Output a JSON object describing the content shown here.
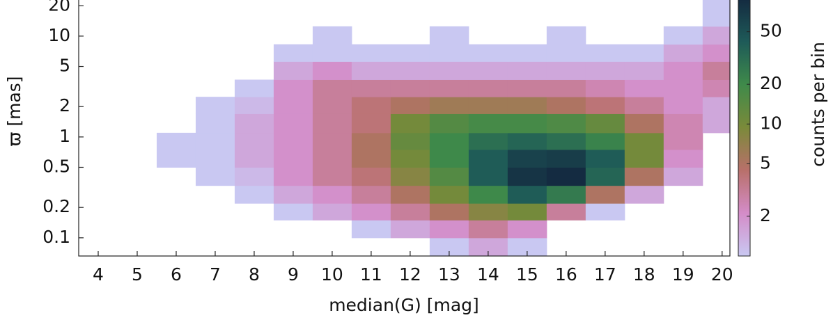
{
  "chart_data": {
    "type": "hist2d",
    "xlabel": "median(G)  [mag]",
    "ylabel": "ϖ  [mas]",
    "colorbar_label": "counts per bin",
    "xlim": [
      3.5,
      20.2
    ],
    "xticks": [
      4,
      5,
      6,
      7,
      8,
      9,
      10,
      11,
      12,
      13,
      14,
      15,
      16,
      17,
      18,
      19,
      20
    ],
    "ylim": [
      0.066,
      22.8
    ],
    "yscale": "log",
    "yticks": [
      0.1,
      0.2,
      0.5,
      1,
      2,
      5,
      10,
      20
    ],
    "clim": [
      1,
      87
    ],
    "cscale": "log",
    "cticks": [
      2,
      5,
      10,
      20,
      50
    ],
    "colormap": [
      "#c9c8f2",
      "#d48cc8",
      "#b8706a",
      "#7a8a3a",
      "#3f8a4a",
      "#1e5a58",
      "#142a40"
    ],
    "xbins": [
      3.5,
      4.5,
      5.5,
      6.5,
      7.5,
      8.5,
      9.5,
      10.5,
      11.5,
      12.5,
      13.5,
      14.5,
      15.5,
      16.5,
      17.5,
      18.5,
      19.5,
      20.5
    ],
    "ybins": [
      0.066,
      0.1,
      0.15,
      0.22,
      0.33,
      0.5,
      0.75,
      1.1,
      1.7,
      2.5,
      3.7,
      5.6,
      8.3,
      12.5,
      22.8
    ],
    "counts": [
      [
        null,
        null,
        null,
        null,
        null,
        null,
        null,
        null,
        null,
        1,
        1.5,
        1,
        null,
        null,
        null,
        null,
        null
      ],
      [
        null,
        null,
        null,
        null,
        null,
        null,
        null,
        1,
        1.5,
        2,
        3,
        2,
        null,
        null,
        null,
        null,
        null
      ],
      [
        null,
        null,
        null,
        null,
        null,
        1,
        1.5,
        2,
        3,
        5,
        8,
        10,
        3,
        1,
        null,
        null,
        null
      ],
      [
        null,
        null,
        null,
        null,
        1,
        1.5,
        2,
        3,
        5,
        10,
        20,
        40,
        25,
        5,
        1.5,
        null,
        null
      ],
      [
        null,
        null,
        null,
        1,
        1.2,
        2,
        3,
        4,
        8,
        15,
        40,
        75,
        85,
        35,
        5,
        1.5,
        null
      ],
      [
        null,
        null,
        1,
        1,
        1.5,
        2,
        3,
        5,
        10,
        20,
        40,
        60,
        65,
        40,
        10,
        2,
        null
      ],
      [
        null,
        null,
        1,
        1,
        1.5,
        2,
        3,
        5,
        12,
        20,
        30,
        35,
        30,
        22,
        10,
        2.5,
        null
      ],
      [
        null,
        null,
        null,
        1,
        1.5,
        2,
        3,
        4,
        10,
        15,
        18,
        18,
        16,
        12,
        5,
        2.5,
        1.5
      ],
      [
        null,
        null,
        null,
        1,
        1.2,
        2,
        3,
        4,
        5,
        6,
        6,
        6,
        5,
        4,
        3,
        2,
        1.5
      ],
      [
        null,
        null,
        null,
        null,
        1,
        2,
        3,
        3,
        3,
        3,
        3,
        3,
        3,
        2.5,
        2,
        2,
        2.5
      ],
      [
        null,
        null,
        null,
        null,
        null,
        1.5,
        2,
        1.5,
        1.5,
        1.5,
        1.5,
        1.5,
        1.5,
        1.5,
        1.5,
        2,
        3
      ],
      [
        null,
        null,
        null,
        null,
        null,
        1,
        1,
        1,
        1,
        1,
        1,
        1,
        1,
        1,
        1,
        1.5,
        2
      ],
      [
        null,
        null,
        null,
        null,
        null,
        null,
        1,
        null,
        null,
        1,
        null,
        null,
        1,
        null,
        null,
        1,
        1.5
      ],
      [
        null,
        null,
        null,
        null,
        null,
        null,
        null,
        null,
        null,
        null,
        null,
        null,
        null,
        null,
        null,
        null,
        1
      ]
    ]
  }
}
